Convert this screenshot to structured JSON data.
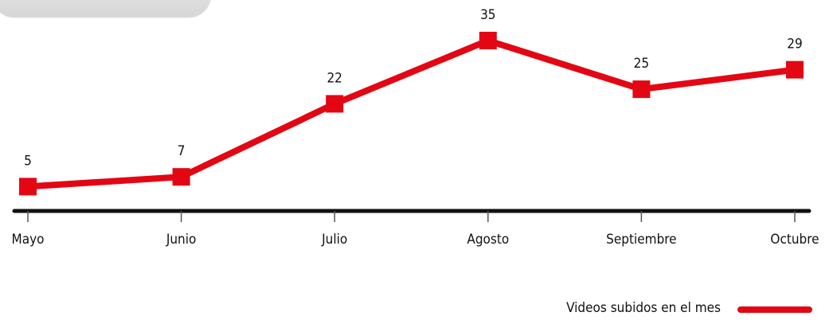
{
  "chart_data": {
    "type": "line",
    "categories": [
      "Mayo",
      "Junio",
      "Julio",
      "Agosto",
      "Septiembre",
      "Octubre"
    ],
    "series": [
      {
        "name": "Videos subidos en el mes",
        "color": "#e30613",
        "values": [
          5,
          7,
          22,
          35,
          25,
          29
        ]
      }
    ],
    "ylim": [
      0,
      43
    ],
    "legend": "bottom-right"
  }
}
